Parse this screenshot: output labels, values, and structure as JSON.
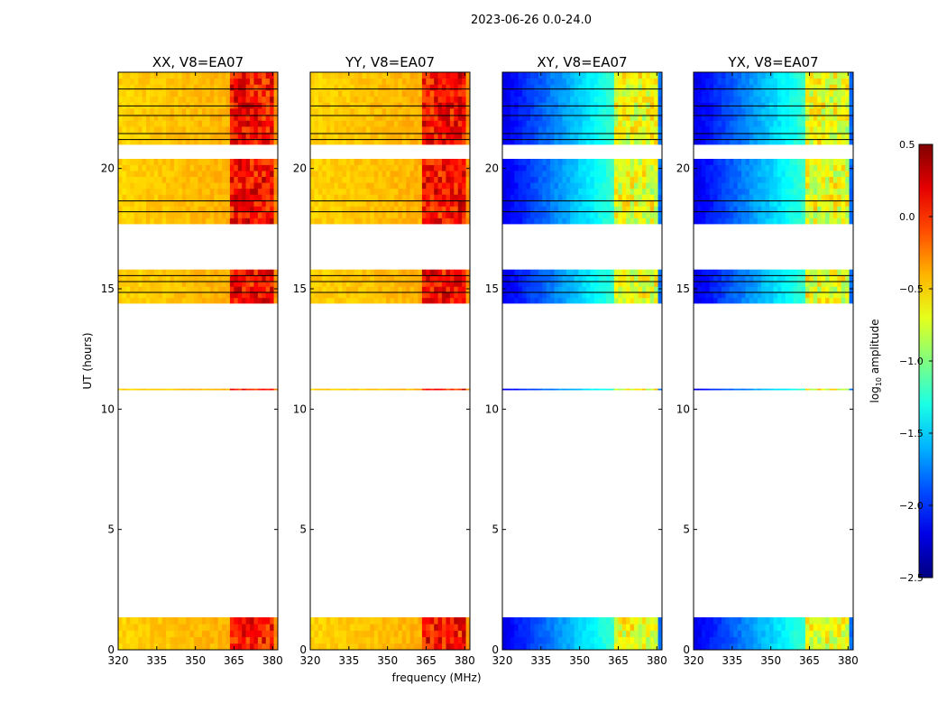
{
  "figure": {
    "suptitle": "2023-06-26 0.0-24.0",
    "xlabel": "frequency (MHz)",
    "ylabel": "UT (hours)",
    "colorbar_label_prefix": "log",
    "colorbar_label_sub": "10",
    "colorbar_label_suffix": " amplitude"
  },
  "chart_data": {
    "type": "heatmap",
    "title": "2023-06-26 0.0-24.0",
    "xlabel": "frequency (MHz)",
    "ylabel": "UT (hours)",
    "xlim": [
      320,
      382
    ],
    "ylim": [
      0,
      24
    ],
    "xticks": [
      320,
      335,
      350,
      365,
      380
    ],
    "xtick_labels": [
      "320",
      "335",
      "350",
      "365",
      "380"
    ],
    "yticks": [
      0,
      5,
      10,
      15,
      20
    ],
    "ytick_labels": [
      "0",
      "5",
      "10",
      "15",
      "20"
    ],
    "colorbar": {
      "label": "log10 amplitude",
      "range": [
        -2.5,
        0.5
      ],
      "ticks": [
        0.5,
        0.0,
        -0.5,
        -1.0,
        -1.5,
        -2.0,
        -2.5
      ],
      "tick_labels": [
        "0.5",
        "0.0",
        "−0.5",
        "−1.0",
        "−1.5",
        "−2.0",
        "−2.5"
      ],
      "colormap": "jet"
    },
    "data_time_ranges_hours": [
      [
        0.0,
        1.35
      ],
      [
        10.8,
        10.85
      ],
      [
        14.4,
        15.8
      ],
      [
        17.7,
        20.4
      ],
      [
        21.0,
        24.0
      ]
    ],
    "gap_lines_hours": [
      14.85,
      15.3,
      15.55,
      18.2,
      18.65,
      21.2,
      21.45,
      22.2,
      22.6,
      23.3
    ],
    "panels": [
      {
        "title": "XX, V8=EA07",
        "baseline_log_amp": -0.5,
        "rfi_band_mhz": [
          364,
          380
        ],
        "rfi_peak_log_amp": 0.1
      },
      {
        "title": "YY, V8=EA07",
        "baseline_log_amp": -0.5,
        "rfi_band_mhz": [
          364,
          380
        ],
        "rfi_peak_log_amp": 0.1
      },
      {
        "title": "XY, V8=EA07",
        "baseline_log_amp": -2.2,
        "rfi_band_mhz": [
          364,
          380
        ],
        "rfi_peak_log_amp": -0.7
      },
      {
        "title": "YX, V8=EA07",
        "baseline_log_amp": -2.2,
        "rfi_band_mhz": [
          364,
          380
        ],
        "rfi_peak_log_amp": -0.7
      }
    ]
  }
}
